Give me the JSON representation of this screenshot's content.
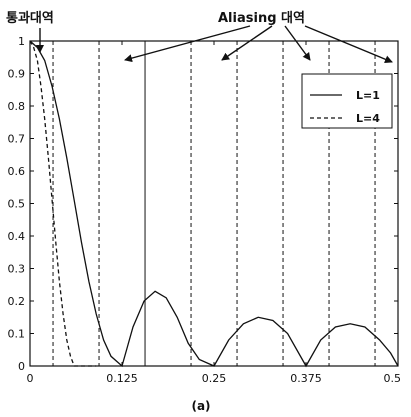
{
  "chart_data": {
    "type": "line",
    "title": "",
    "xlabel": "",
    "ylabel": "",
    "xlim": [
      0,
      0.5
    ],
    "ylim": [
      0,
      1
    ],
    "x_ticks": [
      "0",
      "0.125",
      "0.25",
      "0.375",
      "0.5"
    ],
    "y_ticks": [
      "0",
      "0.1",
      "0.2",
      "0.3",
      "0.4",
      "0.5",
      "0.6",
      "0.7",
      "0.8",
      "0.9",
      "1"
    ],
    "grid": false,
    "legend_position": "top-right",
    "series": [
      {
        "name": "L=1",
        "style": "solid",
        "x": [
          0,
          0.01,
          0.02,
          0.03,
          0.04,
          0.05,
          0.06,
          0.07,
          0.08,
          0.09,
          0.1,
          0.11,
          0.125,
          0.14,
          0.155,
          0.17,
          0.185,
          0.2,
          0.215,
          0.23,
          0.25,
          0.27,
          0.29,
          0.31,
          0.33,
          0.35,
          0.375,
          0.395,
          0.415,
          0.435,
          0.455,
          0.475,
          0.49,
          0.5
        ],
        "values": [
          1.0,
          0.98,
          0.94,
          0.86,
          0.76,
          0.64,
          0.51,
          0.38,
          0.26,
          0.16,
          0.08,
          0.03,
          0.0,
          0.12,
          0.2,
          0.23,
          0.21,
          0.15,
          0.07,
          0.02,
          0.0,
          0.08,
          0.13,
          0.15,
          0.14,
          0.1,
          0.0,
          0.08,
          0.12,
          0.13,
          0.12,
          0.08,
          0.04,
          0.0
        ]
      },
      {
        "name": "L=4",
        "style": "dashed",
        "x": [
          0,
          0.005,
          0.01,
          0.015,
          0.02,
          0.025,
          0.03,
          0.035,
          0.04,
          0.045,
          0.05,
          0.055,
          0.06,
          0.065,
          0.07,
          0.075,
          0.08,
          0.085,
          0.09
        ],
        "values": [
          1.0,
          0.98,
          0.94,
          0.86,
          0.76,
          0.64,
          0.51,
          0.38,
          0.26,
          0.16,
          0.08,
          0.03,
          0.0,
          0.0,
          0.0,
          0.0,
          0.0,
          0.0,
          0.0
        ]
      }
    ],
    "vertical_lines": [
      {
        "x": 0.0313,
        "style": "dashed"
      },
      {
        "x": 0.0938,
        "style": "dashed"
      },
      {
        "x": 0.1563,
        "style": "solid"
      },
      {
        "x": 0.2188,
        "style": "dashed"
      },
      {
        "x": 0.2813,
        "style": "dashed"
      },
      {
        "x": 0.3438,
        "style": "dashed"
      },
      {
        "x": 0.4063,
        "style": "dashed"
      },
      {
        "x": 0.4688,
        "style": "dashed"
      }
    ],
    "annotations": [
      {
        "text": "통과대역"
      },
      {
        "text": "Aliasing 대역"
      }
    ],
    "caption": "(a)"
  }
}
